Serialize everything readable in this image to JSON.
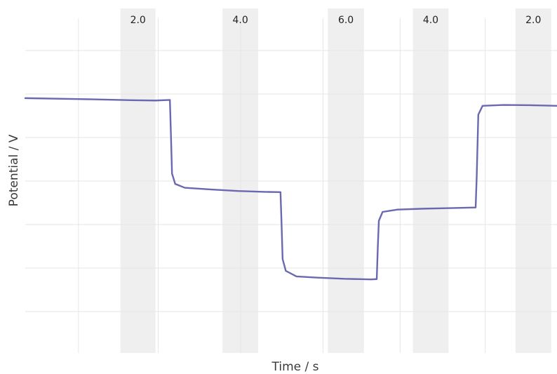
{
  "chart_data": {
    "type": "line",
    "title": "",
    "xlabel": "Time / s",
    "ylabel": "Potential / V",
    "xlim": [
      0,
      100
    ],
    "ylim": [
      0,
      100
    ],
    "grid": true,
    "legend": "none",
    "line_color": "#6b68b0",
    "band_color": "#efefef",
    "bands": [
      {
        "label": "2.0",
        "x0": 17.9,
        "x1": 24.5
      },
      {
        "label": "4.0",
        "x0": 37.1,
        "x1": 43.8
      },
      {
        "label": "6.0",
        "x0": 56.9,
        "x1": 63.7
      },
      {
        "label": "4.0",
        "x0": 72.9,
        "x1": 79.6
      },
      {
        "label": "2.0",
        "x0": 92.2,
        "x1": 98.9
      }
    ],
    "series": [
      {
        "x": [
          0,
          10,
          20,
          24.5,
          27.2,
          27.4,
          27.6,
          28.2,
          30,
          35,
          40,
          45,
          48,
          48.2,
          48.4,
          49,
          51,
          55,
          60,
          65,
          66.1,
          66.3,
          66.5,
          67.2,
          70,
          75,
          80,
          84.7,
          84.9,
          85.2,
          86,
          90,
          95,
          100
        ],
        "y": [
          78.6,
          78.3,
          77.9,
          77.8,
          78.0,
          66.0,
          53.0,
          49.5,
          48.2,
          47.6,
          47.1,
          46.8,
          46.7,
          36.0,
          24.0,
          20.0,
          18.1,
          17.7,
          17.3,
          17.1,
          17.2,
          28.0,
          37.0,
          40.0,
          40.8,
          41.1,
          41.3,
          41.5,
          52.0,
          73.0,
          76.0,
          76.3,
          76.2,
          76.0
        ]
      }
    ]
  }
}
